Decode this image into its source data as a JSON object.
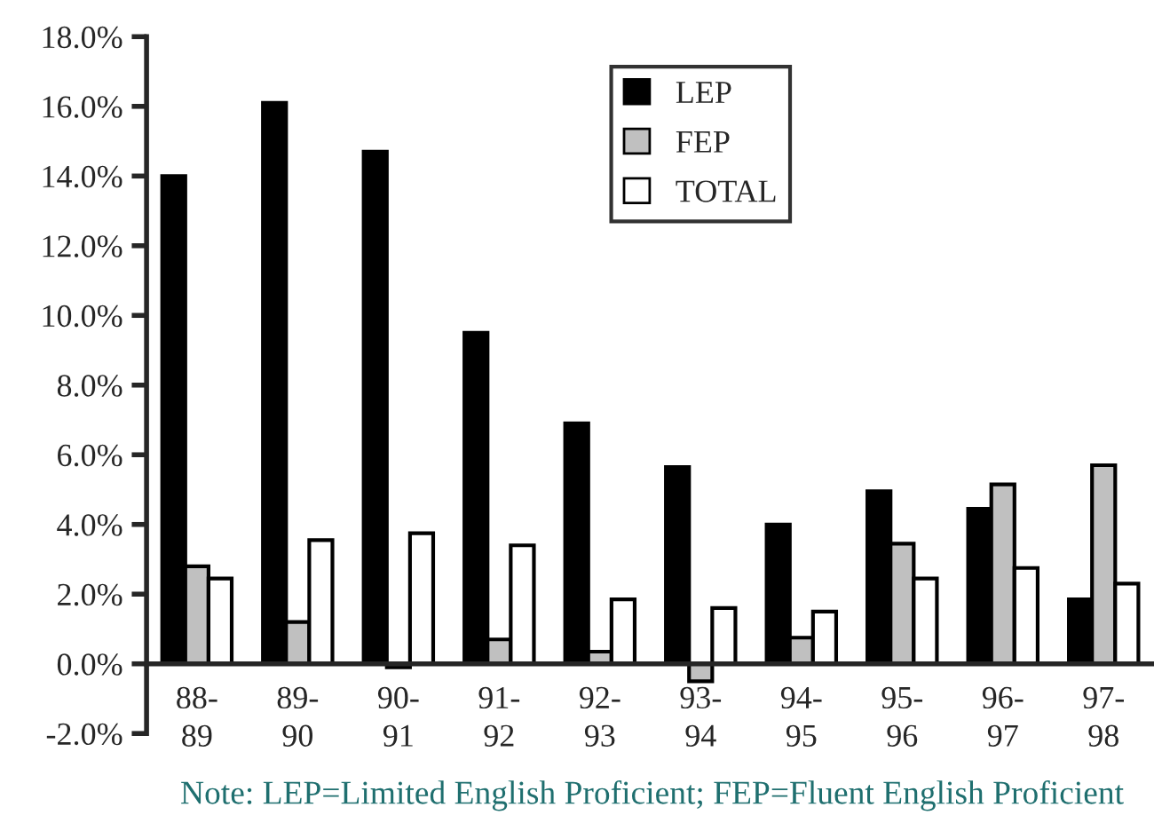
{
  "chart_data": {
    "type": "bar",
    "categories": [
      "88-\n89",
      "89-\n90",
      "90-\n91",
      "91-\n92",
      "92-\n93",
      "93-\n94",
      "94-\n95",
      "95-\n96",
      "96-\n97",
      "97-\n98"
    ],
    "series": [
      {
        "name": "LEP",
        "color": "#000000",
        "values": [
          14.0,
          16.1,
          14.7,
          9.5,
          6.9,
          5.65,
          4.0,
          4.95,
          4.45,
          1.85
        ]
      },
      {
        "name": "FEP",
        "color": "#c0c0c0",
        "values": [
          2.8,
          1.2,
          -0.1,
          0.7,
          0.35,
          -0.5,
          0.75,
          3.45,
          5.15,
          5.7
        ]
      },
      {
        "name": "TOTAL",
        "color": "#ffffff",
        "values": [
          2.45,
          3.55,
          3.75,
          3.4,
          1.85,
          1.6,
          1.5,
          2.45,
          2.75,
          2.3
        ]
      }
    ],
    "ylim": [
      -2,
      18
    ],
    "yticks": [
      {
        "value": -2,
        "label": "-2.0%"
      },
      {
        "value": 0,
        "label": "0.0%"
      },
      {
        "value": 2,
        "label": "2.0%"
      },
      {
        "value": 4,
        "label": "4.0%"
      },
      {
        "value": 6,
        "label": "6.0%"
      },
      {
        "value": 8,
        "label": "8.0%"
      },
      {
        "value": 10,
        "label": "10.0%"
      },
      {
        "value": 12,
        "label": "12.0%"
      },
      {
        "value": 14,
        "label": "14.0%"
      },
      {
        "value": 16,
        "label": "16.0%"
      },
      {
        "value": 18,
        "label": "18.0%"
      }
    ],
    "grid": false,
    "legend": "top",
    "annotations": [
      "Note: LEP=Limited English Proficient; FEP=Fluent English Proficient"
    ]
  }
}
